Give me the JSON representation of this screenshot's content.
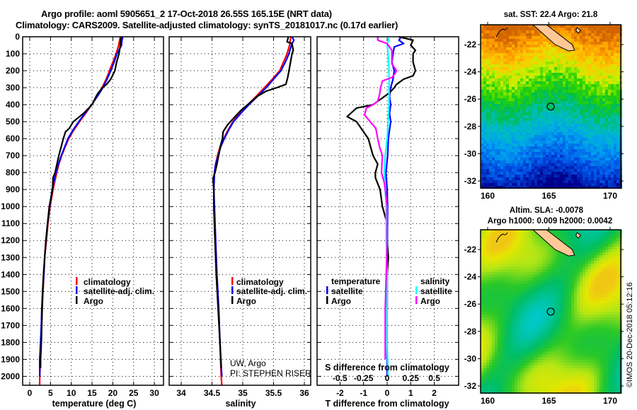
{
  "header": {
    "title_line1": "Argo profile: aoml 5905651_2 17-Oct-2018 26.55S 165.15E (NRT data)",
    "title_line2": "Climatology: CARS2009. Satellite-adjusted climatology: synTS_20181017.nc (0.17d earlier)"
  },
  "colors": {
    "climatology": "#ff0000",
    "satellite": "#0000ff",
    "argo": "#000000",
    "salinity_satellite": "#00ffff",
    "salinity_argo": "#ff00ff"
  },
  "chart_data": [
    {
      "type": "line",
      "name": "temperature-profile",
      "xlabel": "temperature (deg C)",
      "ylabel": "",
      "xlim": [
        -1.7,
        32
      ],
      "ylim": [
        2050,
        0
      ],
      "xticks": [
        "0",
        "5",
        "10",
        "15",
        "20",
        "25",
        "30"
      ],
      "yticks": [
        "0",
        "100",
        "200",
        "300",
        "400",
        "500",
        "600",
        "700",
        "800",
        "900",
        "1000",
        "1100",
        "1200",
        "1300",
        "1400",
        "1500",
        "1600",
        "1700",
        "1800",
        "1900",
        "2000"
      ],
      "grid": true,
      "legend": {
        "placement": "center-right",
        "entries": [
          "climatology",
          "satellite-adj. clim.",
          "Argo"
        ]
      },
      "series": [
        {
          "name": "climatology",
          "color": "#ff0000",
          "depth": [
            0,
            50,
            100,
            150,
            200,
            250,
            300,
            350,
            400,
            450,
            500,
            550,
            600,
            650,
            700,
            750,
            800,
            900,
            1000,
            1100,
            1200,
            1300,
            1400,
            1500,
            1600,
            1700,
            1800,
            1900,
            2000,
            2050
          ],
          "values": [
            21.8,
            21.4,
            20.8,
            20.0,
            19.2,
            18.4,
            17.4,
            16.2,
            14.9,
            13.5,
            12.0,
            10.6,
            9.4,
            8.5,
            7.7,
            7.0,
            6.5,
            5.6,
            4.9,
            4.4,
            4.0,
            3.6,
            3.4,
            3.2,
            3.0,
            2.8,
            2.7,
            2.6,
            2.4,
            2.4
          ]
        },
        {
          "name": "satellite-adj. clim.",
          "color": "#0000ff",
          "depth": [
            0,
            20,
            50,
            100,
            150,
            200,
            250,
            300,
            350,
            400,
            450,
            500,
            550,
            600,
            650,
            700,
            750,
            800,
            900,
            1000,
            1100,
            1200,
            1300,
            1400,
            1500,
            1600,
            1700,
            1800,
            1900,
            2000
          ],
          "values": [
            22.4,
            22.2,
            22.1,
            21.0,
            20.3,
            19.5,
            18.6,
            17.6,
            16.3,
            14.9,
            13.3,
            11.8,
            10.4,
            9.2,
            8.4,
            7.6,
            6.9,
            6.3,
            5.4,
            4.8,
            4.3,
            3.9,
            3.6,
            3.4,
            3.1,
            2.9,
            2.8,
            2.6,
            2.4,
            2.4
          ]
        },
        {
          "name": "Argo",
          "color": "#000000",
          "depth": [
            0,
            50,
            100,
            150,
            200,
            250,
            280,
            300,
            330,
            350,
            400,
            450,
            480,
            500,
            540,
            560,
            600,
            700,
            800,
            830,
            900,
            1000,
            1100,
            1200,
            1300,
            1400,
            1500,
            1600,
            1700,
            1800,
            1900,
            1950
          ],
          "values": [
            22.0,
            21.8,
            21.5,
            20.9,
            20.5,
            19.5,
            18.5,
            17.5,
            16.5,
            16.0,
            15.0,
            13.0,
            11.5,
            10.5,
            9.5,
            8.6,
            8.1,
            7.0,
            6.1,
            5.6,
            5.5,
            4.7,
            4.3,
            3.9,
            3.6,
            3.3,
            3.1,
            3.0,
            2.9,
            2.8,
            2.6,
            2.6
          ]
        }
      ]
    },
    {
      "type": "line",
      "name": "salinity-profile",
      "xlabel": "salinity",
      "ylabel": "",
      "xlim": [
        33.8,
        36.1
      ],
      "ylim": [
        2050,
        0
      ],
      "xticks": [
        "34",
        "34.5",
        "35",
        "35.5",
        "36"
      ],
      "grid": true,
      "legend": {
        "placement": "center-right",
        "entries": [
          "climatology",
          "satellite-adj. clim.",
          "Argo"
        ]
      },
      "annotation": [
        "UW, Argo",
        "PI: STEPHEN RISER"
      ],
      "series": [
        {
          "name": "climatology",
          "color": "#ff0000",
          "depth": [
            0,
            50,
            100,
            150,
            200,
            250,
            300,
            350,
            400,
            450,
            500,
            550,
            600,
            650,
            700,
            750,
            800,
            900,
            1000,
            1200,
            1400,
            1600,
            1800,
            2000,
            2050
          ],
          "values": [
            35.78,
            35.76,
            35.72,
            35.66,
            35.6,
            35.48,
            35.35,
            35.22,
            35.08,
            34.95,
            34.84,
            34.76,
            34.69,
            34.63,
            34.59,
            34.56,
            34.54,
            34.53,
            34.53,
            34.55,
            34.57,
            34.6,
            34.63,
            34.65,
            34.66
          ]
        },
        {
          "name": "satellite-adj. clim.",
          "color": "#0000ff",
          "depth": [
            0,
            20,
            50,
            100,
            150,
            200,
            250,
            300,
            350,
            400,
            450,
            500,
            550,
            600,
            650,
            700,
            750,
            800,
            900,
            1000,
            1200,
            1400,
            1600,
            1800,
            2000
          ],
          "values": [
            35.8,
            35.83,
            35.79,
            35.75,
            35.69,
            35.62,
            35.5,
            35.38,
            35.24,
            35.1,
            34.97,
            34.85,
            34.77,
            34.7,
            34.64,
            34.6,
            34.56,
            34.54,
            34.53,
            34.54,
            34.56,
            34.58,
            34.61,
            34.63,
            34.66
          ]
        },
        {
          "name": "Argo",
          "color": "#000000",
          "depth": [
            0,
            30,
            40,
            80,
            100,
            200,
            240,
            280,
            300,
            320,
            350,
            400,
            430,
            480,
            520,
            560,
            600,
            640,
            680,
            750,
            800,
            830,
            850,
            900,
            1000,
            1200,
            1400,
            1600,
            1800,
            1950
          ],
          "values": [
            35.74,
            35.72,
            35.8,
            35.82,
            35.8,
            35.75,
            35.73,
            35.7,
            35.55,
            35.38,
            35.24,
            35.08,
            34.98,
            34.85,
            34.75,
            34.68,
            34.67,
            34.64,
            34.62,
            34.58,
            34.55,
            34.52,
            34.52,
            34.53,
            34.53,
            34.55,
            34.57,
            34.6,
            34.63,
            34.65
          ]
        }
      ]
    },
    {
      "type": "line",
      "name": "difference-profile",
      "xlabel": "T difference from climatology",
      "xlabel_secondary": "S difference from climatology",
      "xlim": [
        -3,
        3
      ],
      "xlim_secondary": [
        -0.75,
        0.75
      ],
      "ylim": [
        2050,
        0
      ],
      "xticks": [
        "-2",
        "-1",
        "0",
        "1",
        "2"
      ],
      "xticks_secondary": [
        "-0.5",
        "-0.25",
        "0",
        "0.25",
        "0.5"
      ],
      "grid": true,
      "legend": {
        "placement": "center",
        "temperature_header": "temperature",
        "salinity_header": "salinity",
        "entries": [
          "satellite",
          "Argo",
          "satellite",
          "Argo"
        ]
      },
      "series": [
        {
          "name": "T satellite",
          "color": "#0000ff",
          "axis": "T",
          "depth": [
            0,
            20,
            40,
            60,
            100,
            150,
            200,
            250,
            300,
            350,
            400,
            450,
            500,
            550,
            600,
            700,
            800,
            900,
            1000,
            1200,
            1400,
            1600,
            1800,
            2000
          ],
          "values": [
            0.6,
            0.5,
            0.7,
            0.3,
            0.25,
            0.2,
            0.3,
            0.25,
            0.15,
            0.1,
            0.15,
            0.1,
            0.15,
            0.1,
            0.05,
            0.02,
            -0.05,
            0.0,
            0.02,
            0.01,
            0.0,
            0.0,
            0.0,
            0.0
          ]
        },
        {
          "name": "T Argo",
          "color": "#000000",
          "axis": "T",
          "depth": [
            0,
            20,
            50,
            80,
            100,
            150,
            200,
            230,
            250,
            280,
            300,
            330,
            370,
            400,
            420,
            470,
            500,
            560,
            600,
            700,
            750,
            800,
            830,
            900,
            1000,
            1100,
            1200,
            1300,
            1400,
            1500,
            1600
          ],
          "values": [
            0.5,
            1.1,
            1.0,
            1.2,
            1.1,
            1.1,
            1.2,
            1.1,
            0.7,
            0.4,
            0.3,
            0.1,
            -0.3,
            -0.6,
            -1.3,
            -1.7,
            -1.3,
            -1.0,
            -0.8,
            -0.6,
            -0.4,
            -0.5,
            -0.5,
            -0.3,
            -0.2,
            0.0,
            0.0,
            0.05,
            0.0,
            0.0,
            0.0
          ]
        },
        {
          "name": "S satellite",
          "color": "#00ffff",
          "axis": "S",
          "depth": [
            0,
            20,
            40,
            100,
            200,
            300,
            400,
            500,
            600,
            700,
            800,
            900,
            1000,
            1200,
            1400,
            1600,
            1800,
            2000
          ],
          "values": [
            0.0,
            0.02,
            0.0,
            0.01,
            0.02,
            0.02,
            0.02,
            0.01,
            0.0,
            -0.02,
            -0.03,
            -0.02,
            -0.01,
            -0.01,
            0.0,
            0.0,
            0.0,
            0.01
          ]
        },
        {
          "name": "S Argo",
          "color": "#ff00ff",
          "axis": "S",
          "depth": [
            0,
            20,
            40,
            80,
            120,
            160,
            200,
            220,
            240,
            260,
            300,
            340,
            380,
            400,
            420,
            460,
            500,
            540,
            600,
            650,
            700,
            800,
            860,
            900,
            1000,
            1200,
            1400,
            1600,
            1800,
            1900
          ],
          "values": [
            -0.1,
            -0.1,
            0.0,
            0.05,
            0.05,
            0.05,
            0.1,
            0.08,
            0.05,
            -0.05,
            -0.07,
            -0.08,
            -0.1,
            -0.15,
            -0.22,
            -0.24,
            -0.18,
            -0.12,
            -0.1,
            -0.08,
            -0.05,
            -0.06,
            -0.03,
            -0.02,
            0.0,
            0.0,
            -0.01,
            -0.02,
            -0.02,
            -0.02
          ]
        }
      ]
    },
    {
      "type": "heatmap",
      "name": "sst-map",
      "title": "sat. SST: 22.4 Argo: 21.8",
      "sat_sst": 22.4,
      "argo_sst": 21.8,
      "xlim": [
        159.4,
        170.9
      ],
      "ylim": [
        -32.6,
        -20.6
      ],
      "xticks": [
        "160",
        "165",
        "170"
      ],
      "yticks": [
        "-22",
        "-24",
        "-26",
        "-28",
        "-30",
        "-32"
      ],
      "marker": {
        "lon": 165.15,
        "lat": -26.55
      }
    },
    {
      "type": "heatmap",
      "name": "sla-map",
      "title_line1": "Altim. SLA: -0.0078",
      "title_line2": "Argo h1000: 0.009 h2000: 0.0042",
      "sla": -0.0078,
      "argo_h1000": 0.009,
      "argo_h2000": 0.0042,
      "xlim": [
        159.4,
        170.9
      ],
      "ylim": [
        -32.6,
        -20.6
      ],
      "xticks": [
        "160",
        "165",
        "170"
      ],
      "yticks": [
        "-22",
        "-24",
        "-26",
        "-28",
        "-30",
        "-32"
      ],
      "marker": {
        "lon": 165.15,
        "lat": -26.55
      }
    }
  ],
  "footer": {
    "copyright": "©IMOS 20-Dec-2018 05:12:16"
  },
  "legends": {
    "profile": [
      "climatology",
      "satellite-adj. clim.",
      "Argo"
    ],
    "credit_line1": "UW, Argo",
    "credit_line2": "PI: STEPHEN RISER",
    "diff_temperature_header": "temperature",
    "diff_salinity_header": "salinity",
    "diff_satellite": "satellite",
    "diff_argo": "Argo"
  }
}
